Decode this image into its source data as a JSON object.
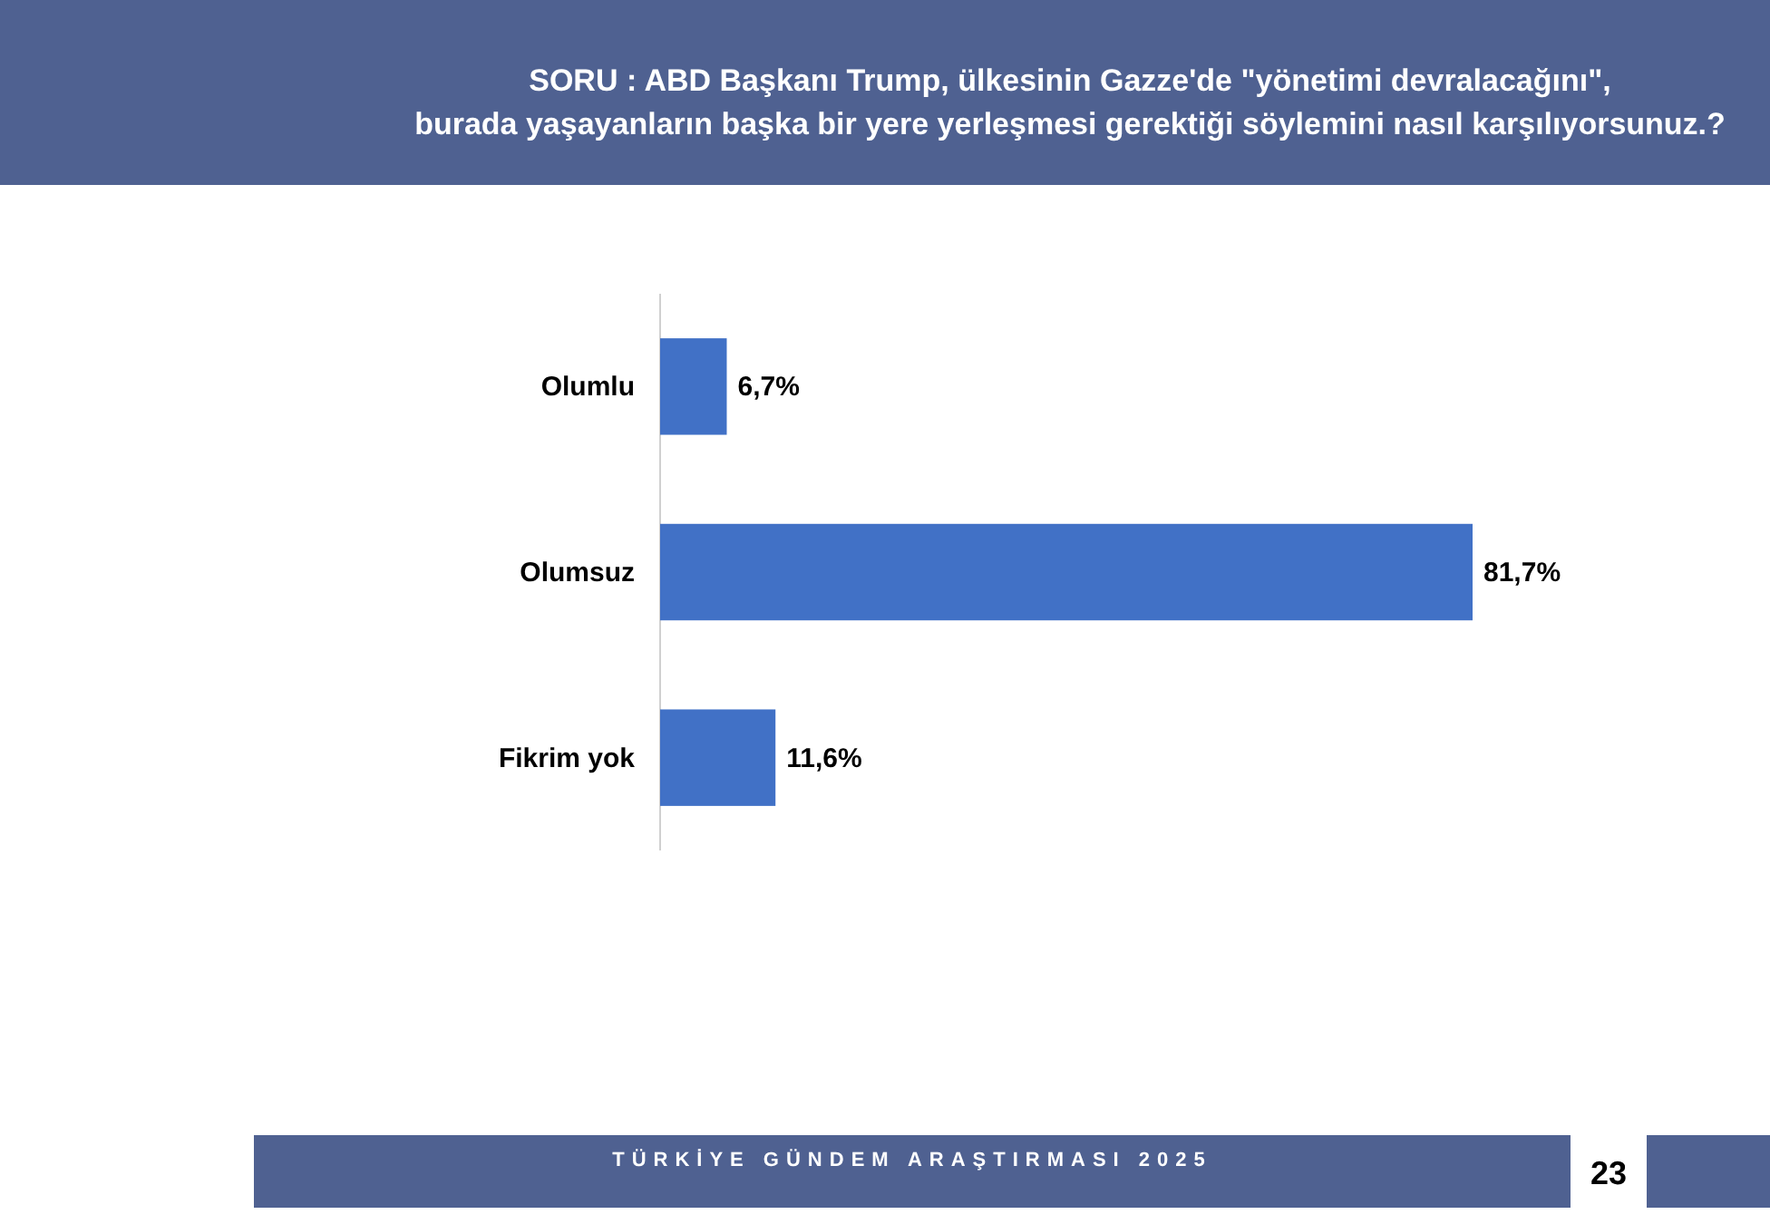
{
  "chart_data": {
    "type": "bar",
    "orientation": "horizontal",
    "title": "SORU : ABD Başkanı Trump, ülkesinin Gazze'de \"yönetimi devralacağını\", burada yaşayanların başka bir yere yerleşmesi gerektiği söylemini nasıl karşılıyorsunuz.?",
    "categories": [
      "Olumlu",
      "Olumsuz",
      "Fikrim yok"
    ],
    "values": [
      6.7,
      81.7,
      11.6
    ],
    "value_labels": [
      "6,7%",
      "81,7%",
      "11,6%"
    ],
    "color": "#4171c6",
    "annotations": [
      "TÜRKİYE GÜNDEM ARAŞTIRMASI 2025",
      "23"
    ]
  }
}
